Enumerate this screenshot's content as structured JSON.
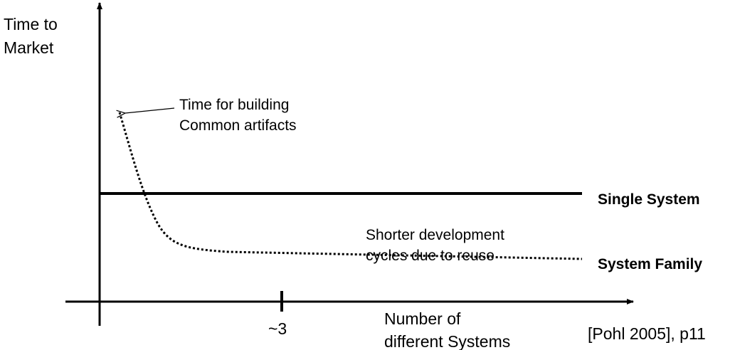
{
  "y_axis": {
    "label_line1": "Time to",
    "label_line2": "Market"
  },
  "x_axis": {
    "label_line1": "Number of",
    "label_line2": "different Systems",
    "tick_label": "~3"
  },
  "annotation_top": {
    "line1": "Time for building",
    "line2": "Common artifacts"
  },
  "annotation_bottom": {
    "line1": "Shorter development",
    "line2": "cycles due to reuse"
  },
  "series": {
    "single": "Single System",
    "family": "System Family"
  },
  "citation": "[Pohl 2005], p11"
}
